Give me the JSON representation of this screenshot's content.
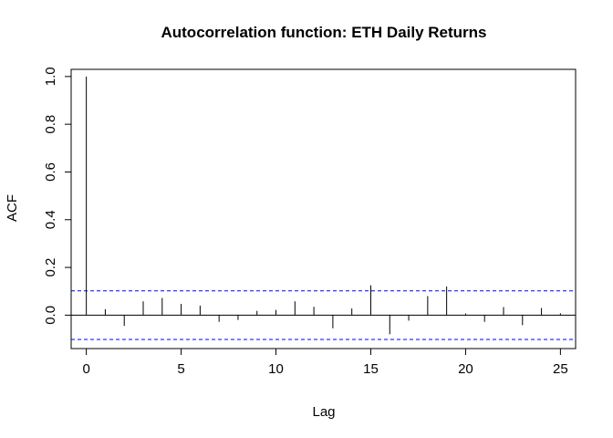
{
  "chart_data": {
    "type": "bar",
    "title": "Autocorrelation function: ETH Daily Returns",
    "xlabel": "Lag",
    "ylabel": "ACF",
    "xlim": [
      -0.8,
      25.8
    ],
    "ylim": [
      -0.14,
      1.03
    ],
    "x": [
      0,
      1,
      2,
      3,
      4,
      5,
      6,
      7,
      8,
      9,
      10,
      11,
      12,
      13,
      14,
      15,
      16,
      17,
      18,
      19,
      20,
      21,
      22,
      23,
      24,
      25
    ],
    "values": [
      1.0,
      0.025,
      -0.045,
      0.058,
      0.072,
      0.047,
      0.04,
      -0.028,
      -0.02,
      0.018,
      0.022,
      0.058,
      0.035,
      -0.055,
      0.028,
      0.125,
      -0.08,
      -0.023,
      0.08,
      0.12,
      0.007,
      -0.028,
      0.034,
      -0.042,
      0.03,
      0.008
    ],
    "confidence_band": {
      "upper": 0.102,
      "lower": -0.102,
      "color": "#0000ff",
      "style": "dashed"
    },
    "x_ticks": [
      0,
      5,
      10,
      15,
      20,
      25
    ],
    "x_tick_labels": [
      "0",
      "5",
      "10",
      "15",
      "20",
      "25"
    ],
    "y_ticks": [
      0.0,
      0.2,
      0.4,
      0.6,
      0.8,
      1.0
    ],
    "y_tick_labels": [
      "0.0",
      "0.2",
      "0.4",
      "0.6",
      "0.8",
      "1.0"
    ],
    "grid": false,
    "colors": {
      "bars": "#000000",
      "ci": "#0000ff",
      "axis": "#000000"
    }
  }
}
